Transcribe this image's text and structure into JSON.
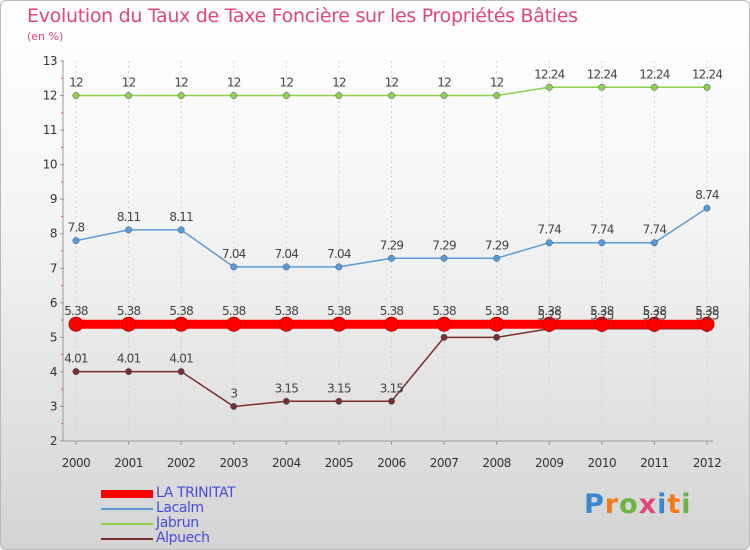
{
  "page": {
    "title": "Evolution du Taux de Taxe Foncière sur les Propriétés Bâties",
    "subtitle": "(en %)",
    "logo": {
      "text": "Proxiti",
      "letters": [
        {
          "ch": "P",
          "color": "#3a87d0"
        },
        {
          "ch": "r",
          "color": "#f07d1a"
        },
        {
          "ch": "o",
          "color": "#6cb33f"
        },
        {
          "ch": "x",
          "color": "#e0457b"
        },
        {
          "ch": "i",
          "color": "#3a87d0"
        },
        {
          "ch": "t",
          "color": "#f07d1a"
        },
        {
          "ch": "i",
          "color": "#6cb33f"
        }
      ]
    }
  },
  "chart_data": {
    "type": "line",
    "title": "Evolution du Taux de Taxe Foncière sur les Propriétés Bâties",
    "ylabel": "(en %)",
    "xlabel": "",
    "ylim": [
      2,
      13
    ],
    "yticks": [
      2,
      3,
      4,
      5,
      6,
      7,
      8,
      9,
      10,
      11,
      12,
      13
    ],
    "grid": "vertical",
    "categories": [
      "2000",
      "2001",
      "2002",
      "2003",
      "2004",
      "2005",
      "2006",
      "2007",
      "2008",
      "2009",
      "2010",
      "2011",
      "2012"
    ],
    "series": [
      {
        "name": "Jabrun",
        "color": "#8fd24a",
        "values": [
          12,
          12,
          12,
          12,
          12,
          12,
          12,
          12,
          12,
          12.24,
          12.24,
          12.24,
          12.24
        ],
        "labels": [
          "12",
          "12",
          "12",
          "12",
          "12",
          "12",
          "12",
          "12",
          "12",
          "12.24",
          "12.24",
          "12.24",
          "12.24"
        ]
      },
      {
        "name": "Lacalm",
        "color": "#5b9bd5",
        "values": [
          7.8,
          8.11,
          8.11,
          7.04,
          7.04,
          7.04,
          7.29,
          7.29,
          7.29,
          7.74,
          7.74,
          7.74,
          8.74
        ],
        "labels": [
          "7.8",
          "8.11",
          "8.11",
          "7.04",
          "7.04",
          "7.04",
          "7.29",
          "7.29",
          "7.29",
          "7.74",
          "7.74",
          "7.74",
          "8.74"
        ]
      },
      {
        "name": "Alpuech",
        "color": "#7a2e2e",
        "values": [
          4.01,
          4.01,
          4.01,
          3,
          3.15,
          3.15,
          3.15,
          5,
          5,
          5.25,
          5.25,
          5.25,
          5.25
        ],
        "labels": [
          "4.01",
          "4.01",
          "4.01",
          "3",
          "3.15",
          "3.15",
          "3.15",
          "",
          "",
          "5.25",
          "5.25",
          "5.25",
          "5.25"
        ]
      },
      {
        "name": "LA TRINITAT",
        "color": "#ff0000",
        "values": [
          5.38,
          5.38,
          5.38,
          5.38,
          5.38,
          5.38,
          5.38,
          5.38,
          5.38,
          5.38,
          5.38,
          5.38,
          5.38
        ],
        "labels": [
          "5.38",
          "5.38",
          "5.38",
          "5.38",
          "5.38",
          "5.38",
          "5.38",
          "5.38",
          "5.38",
          "5.38",
          "5.38",
          "5.38",
          "5.38"
        ]
      }
    ],
    "legend": {
      "position": "bottom-left",
      "entries": [
        {
          "name": "LA TRINITAT",
          "color": "#ff0000"
        },
        {
          "name": "Lacalm",
          "color": "#5b9bd5"
        },
        {
          "name": "Jabrun",
          "color": "#8fd24a"
        },
        {
          "name": "Alpuech",
          "color": "#7a2e2e"
        }
      ]
    }
  }
}
